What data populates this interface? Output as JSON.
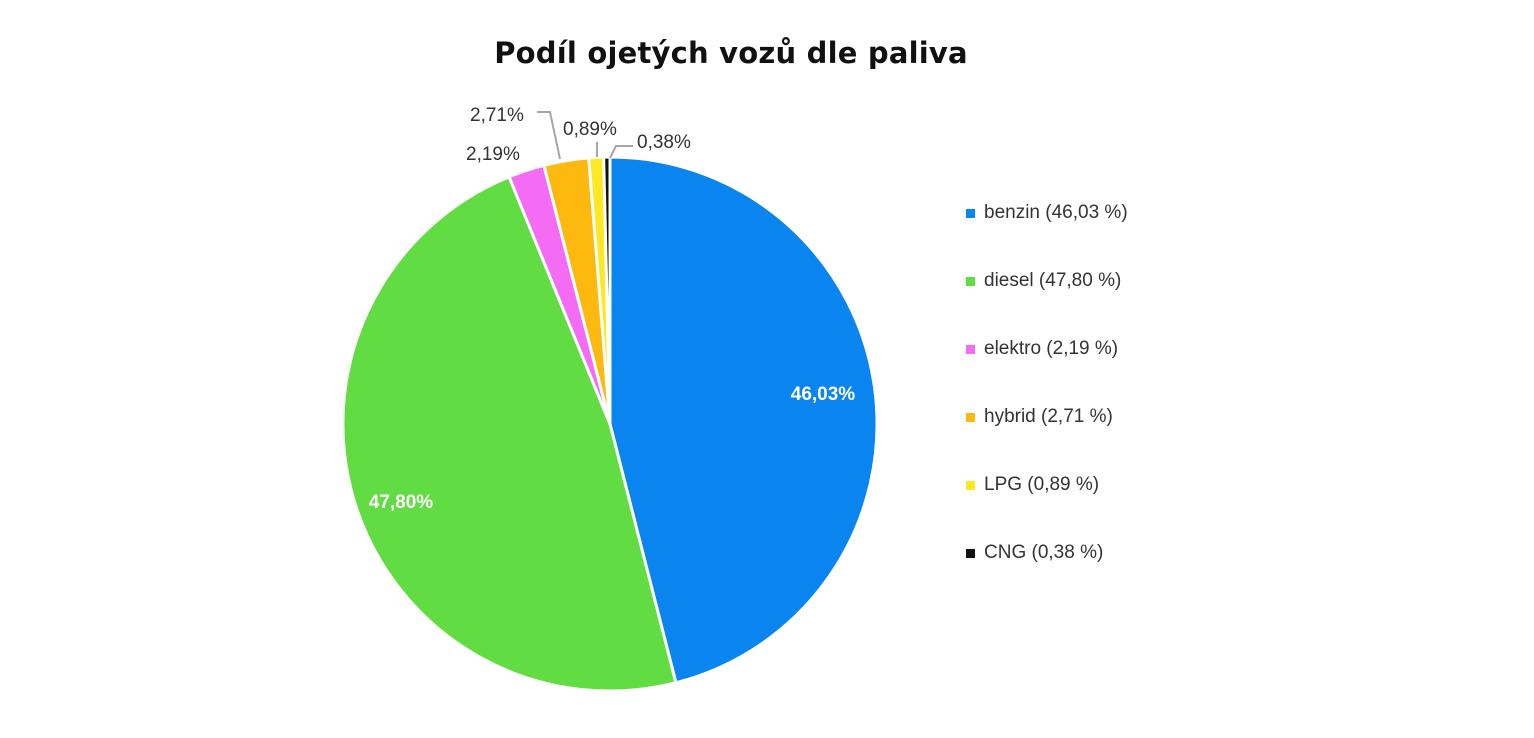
{
  "chart_data": {
    "type": "pie",
    "title": "Podíl ojetých vozů dle paliva",
    "slices": [
      {
        "label": "benzin",
        "value": 46.03,
        "data_label": "46,03%",
        "legend_label": "benzin (46,03 %)",
        "color": "#0A84EE"
      },
      {
        "label": "diesel",
        "value": 47.8,
        "data_label": "47,80%",
        "legend_label": "diesel (47,80 %)",
        "color": "#62DC43"
      },
      {
        "label": "elektro",
        "value": 2.19,
        "data_label": "2,19%",
        "legend_label": "elektro (2,19 %)",
        "color": "#F46BF4"
      },
      {
        "label": "hybrid",
        "value": 2.71,
        "data_label": "2,71%",
        "legend_label": "hybrid (2,71 %)",
        "color": "#FDB90D"
      },
      {
        "label": "LPG",
        "value": 0.89,
        "data_label": "0,89%",
        "legend_label": "LPG (0,89 %)",
        "color": "#FDE923"
      },
      {
        "label": "CNG",
        "value": 0.38,
        "data_label": "0,38%",
        "legend_label": "CNG (0,38 %)",
        "color": "#111111"
      }
    ],
    "legend_position": "right"
  }
}
